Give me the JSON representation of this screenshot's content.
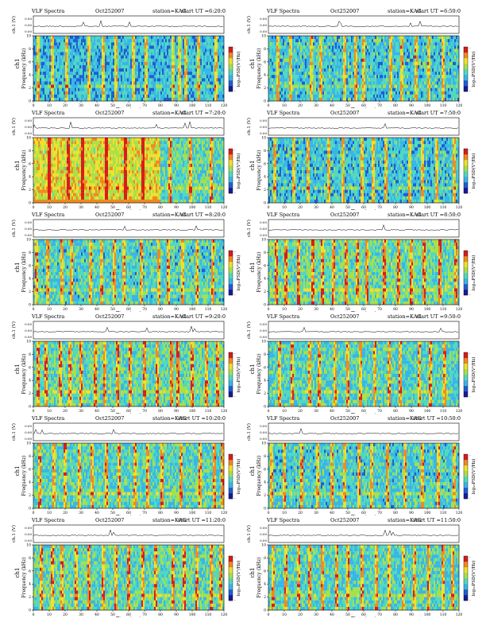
{
  "figure": {
    "ts_ylabel": "ch.1 (V)",
    "spec_ylabel": "Frequency (kHz)",
    "ch_label": "ch1",
    "xlabel": "Time (sec)",
    "cbar_label": "log₁₀PSD(V²/Hz)",
    "cbar_ticks": [
      "-",
      "-"
    ],
    "ts_yticks": [
      "0.00",
      "0.00",
      "0.00"
    ]
  },
  "colormap": [
    "#1a1a9a",
    "#1e5fd0",
    "#39b6e6",
    "#52d8c0",
    "#a8e04a",
    "#f0e030",
    "#f08a20",
    "#d81c1c"
  ],
  "chart_data": [
    {
      "type": "heatmap",
      "title": "VLF Spectra",
      "date": "Oct252007",
      "station": "station=KAG",
      "start": "start UT =6:20:0",
      "xlabel": "Time (sec)",
      "ylabel": "Frequency (kHz)",
      "x_ticks": [
        0,
        10,
        20,
        30,
        40,
        50,
        60,
        70,
        80,
        90,
        100,
        110,
        120
      ],
      "y_ticks": [
        0,
        2,
        4,
        6,
        8,
        10
      ],
      "xlim": [
        0,
        120
      ],
      "ylim": [
        0,
        10
      ],
      "intensity": 0.35,
      "split_at": null,
      "bursts": [
        3,
        12,
        21,
        35,
        44,
        52,
        63,
        71,
        88,
        92,
        96,
        104,
        115
      ]
    },
    {
      "type": "heatmap",
      "title": "VLF Spectra",
      "date": "Oct252007",
      "station": "station=KAG",
      "start": "start UT =6:50:0",
      "xlabel": "Time (sec)",
      "ylabel": "Frequency (kHz)",
      "x_ticks": [
        0,
        10,
        20,
        30,
        40,
        50,
        60,
        70,
        80,
        90,
        100,
        110,
        120
      ],
      "y_ticks": [
        0,
        2,
        4,
        6,
        8,
        10
      ],
      "xlim": [
        0,
        120
      ],
      "ylim": [
        0,
        10
      ],
      "intensity": 0.42,
      "split_at": null,
      "bursts": [
        6,
        14,
        27,
        33,
        48,
        55,
        60,
        77,
        84,
        93,
        101,
        110
      ]
    },
    {
      "type": "heatmap",
      "title": "VLF Spectra",
      "date": "Oct252007",
      "station": "station=KAG",
      "start": "start UT =7:20:0",
      "xlabel": "Time (sec)",
      "ylabel": "Frequency (kHz)",
      "x_ticks": [
        0,
        10,
        20,
        30,
        40,
        50,
        60,
        70,
        80,
        90,
        100,
        110,
        120
      ],
      "y_ticks": [
        0,
        2,
        4,
        6,
        8,
        10
      ],
      "xlim": [
        0,
        120
      ],
      "ylim": [
        0,
        10
      ],
      "intensity": 0.55,
      "split_at": 80,
      "bursts": [
        10,
        22,
        31,
        46,
        58,
        69,
        86,
        99,
        112
      ]
    },
    {
      "type": "heatmap",
      "title": "VLF Spectra",
      "date": "Oct252007",
      "station": "station=KAG",
      "start": "start UT =7:50:0",
      "xlabel": "Time (sec)",
      "ylabel": "Frequency (kHz)",
      "x_ticks": [
        0,
        10,
        20,
        30,
        40,
        50,
        60,
        70,
        80,
        90,
        100,
        110,
        120
      ],
      "y_ticks": [
        0,
        2,
        4,
        6,
        8,
        10
      ],
      "xlim": [
        0,
        120
      ],
      "ylim": [
        0,
        10
      ],
      "intensity": 0.4,
      "split_at": null,
      "bursts": [
        4,
        16,
        25,
        38,
        47,
        59,
        66,
        74,
        89,
        97,
        106,
        117
      ]
    },
    {
      "type": "heatmap",
      "title": "VLF Spectra",
      "date": "Oct252007",
      "station": "station=KAG",
      "start": "start UT =8:20:0",
      "xlabel": "Time (sec)",
      "ylabel": "Frequency (kHz)",
      "x_ticks": [
        0,
        10,
        20,
        30,
        40,
        50,
        60,
        70,
        80,
        90,
        100,
        110,
        120
      ],
      "y_ticks": [
        0,
        2,
        4,
        6,
        8,
        10
      ],
      "xlim": [
        0,
        120
      ],
      "ylim": [
        0,
        10
      ],
      "intensity": 0.48,
      "split_at": null,
      "bursts": [
        2,
        9,
        18,
        24,
        36,
        43,
        51,
        57,
        68,
        79,
        85,
        94,
        103,
        113
      ]
    },
    {
      "type": "heatmap",
      "title": "VLF Spectra",
      "date": "Oct252007",
      "station": "station=KAG",
      "start": "start UT =8:50:0",
      "xlabel": "Time (sec)",
      "ylabel": "Frequency (kHz)",
      "x_ticks": [
        0,
        10,
        20,
        30,
        40,
        50,
        60,
        70,
        80,
        90,
        100,
        110,
        120
      ],
      "y_ticks": [
        0,
        2,
        4,
        6,
        8,
        10
      ],
      "xlim": [
        0,
        120
      ],
      "ylim": [
        0,
        10
      ],
      "intensity": 0.62,
      "split_at": null,
      "bursts": [
        5,
        11,
        19,
        28,
        34,
        41,
        49,
        56,
        62,
        73,
        82,
        90,
        98,
        108,
        118
      ]
    },
    {
      "type": "heatmap",
      "title": "VLF Spectra",
      "date": "Oct252007",
      "station": "station=KAG",
      "start": "start UT =9:20:0",
      "xlabel": "Time (sec)",
      "ylabel": "Frequency (kHz)",
      "x_ticks": [
        0,
        10,
        20,
        30,
        40,
        50,
        60,
        70,
        80,
        90,
        100,
        110,
        120
      ],
      "y_ticks": [
        0,
        2,
        4,
        6,
        8,
        10
      ],
      "xlim": [
        0,
        120
      ],
      "ylim": [
        0,
        10
      ],
      "intensity": 0.58,
      "split_at": null,
      "bursts": [
        3,
        8,
        17,
        23,
        30,
        39,
        45,
        53,
        61,
        70,
        78,
        87,
        91,
        100,
        109,
        116
      ]
    },
    {
      "type": "heatmap",
      "title": "VLF Spectra",
      "date": "Oct252007",
      "station": "station=KAG",
      "start": "start UT =9:50:0",
      "xlabel": "Time (sec)",
      "ylabel": "Frequency (kHz)",
      "x_ticks": [
        0,
        10,
        20,
        30,
        40,
        50,
        60,
        70,
        80,
        90,
        100,
        110,
        120
      ],
      "y_ticks": [
        0,
        2,
        4,
        6,
        8,
        10
      ],
      "xlim": [
        0,
        120
      ],
      "ylim": [
        0,
        10
      ],
      "intensity": 0.5,
      "split_at": null,
      "bursts": [
        7,
        15,
        26,
        32,
        42,
        50,
        58,
        67,
        76,
        83,
        95,
        102,
        111
      ]
    },
    {
      "type": "heatmap",
      "title": "VLF Spectra",
      "date": "Oct252007",
      "station": "station=KAG",
      "start": "start UT =10:20:0",
      "xlabel": "Time (sec)",
      "ylabel": "Frequency (kHz)",
      "x_ticks": [
        0,
        10,
        20,
        30,
        40,
        50,
        60,
        70,
        80,
        90,
        100,
        110,
        120
      ],
      "y_ticks": [
        0,
        2,
        4,
        6,
        8,
        10
      ],
      "xlim": [
        0,
        120
      ],
      "ylim": [
        0,
        10
      ],
      "intensity": 0.52,
      "split_at": null,
      "bursts": [
        4,
        13,
        20,
        29,
        37,
        46,
        54,
        64,
        72,
        81,
        93,
        105,
        114,
        119
      ]
    },
    {
      "type": "heatmap",
      "title": "VLF Spectra",
      "date": "Oct252007",
      "station": "station=KAG",
      "start": "start UT =10:50:0",
      "xlabel": "Time (sec)",
      "ylabel": "Frequency (kHz)",
      "x_ticks": [
        0,
        10,
        20,
        30,
        40,
        50,
        60,
        70,
        80,
        90,
        100,
        110,
        120
      ],
      "y_ticks": [
        0,
        2,
        4,
        6,
        8,
        10
      ],
      "xlim": [
        0,
        120
      ],
      "ylim": [
        0,
        10
      ],
      "intensity": 0.46,
      "split_at": null,
      "bursts": [
        2,
        10,
        21,
        31,
        40,
        48,
        57,
        65,
        75,
        86,
        97,
        107,
        117
      ]
    },
    {
      "type": "heatmap",
      "title": "VLF Spectra",
      "date": "Oct252007",
      "station": "station=KAG",
      "start": "start UT =11:20:0",
      "xlabel": "Time (sec)",
      "ylabel": "Frequency (kHz)",
      "x_ticks": [
        0,
        10,
        20,
        30,
        40,
        50,
        60,
        70,
        80,
        90,
        100,
        110,
        120
      ],
      "y_ticks": [
        0,
        2,
        4,
        6,
        8,
        10
      ],
      "xlim": [
        0,
        120
      ],
      "ylim": [
        0,
        10
      ],
      "intensity": 0.56,
      "split_at": null,
      "bursts": [
        5,
        12,
        18,
        27,
        35,
        44,
        52,
        60,
        69,
        77,
        88,
        95,
        103,
        112,
        118
      ]
    },
    {
      "type": "heatmap",
      "title": "VLF Spectra",
      "date": "Oct252007",
      "station": "station=KAG",
      "start": "start UT =11:50:0",
      "xlabel": "Time (sec)",
      "ylabel": "Frequency (kHz)",
      "x_ticks": [
        0,
        10,
        20,
        30,
        40,
        50,
        60,
        70,
        80,
        90,
        100,
        110,
        120
      ],
      "y_ticks": [
        0,
        2,
        4,
        6,
        8,
        10
      ],
      "xlim": [
        0,
        120
      ],
      "ylim": [
        0,
        10
      ],
      "intensity": 0.5,
      "split_at": null,
      "bursts": [
        3,
        11,
        19,
        26,
        34,
        43,
        50,
        59,
        68,
        76,
        85,
        92,
        101,
        110,
        116
      ]
    }
  ]
}
